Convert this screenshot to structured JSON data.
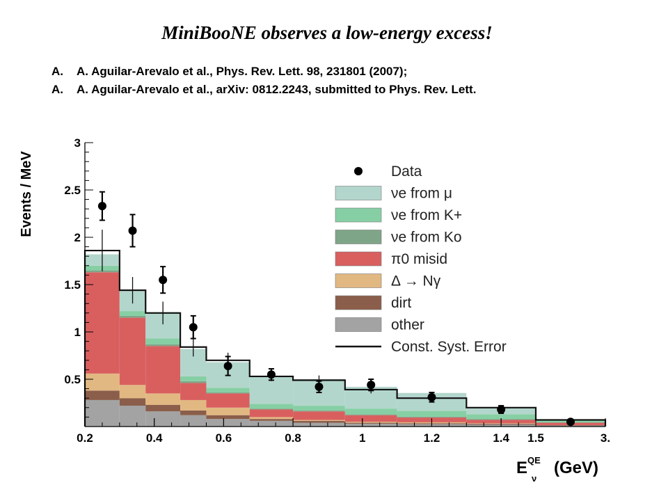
{
  "header": {
    "title": "MiniBooNE observes a low-energy excess!",
    "references": [
      {
        "label": "A.",
        "text": "A. Aguilar-Arevalo et al., Phys. Rev. Lett. 98, 231801 (2007);"
      },
      {
        "label": "A.",
        "text": "A. Aguilar-Arevalo et al., arXiv: 0812.2243, submitted to Phys. Rev. Lett."
      }
    ]
  },
  "chart_data": {
    "type": "area",
    "title": "",
    "ylabel": "Events / MeV",
    "xlabel_main": "E",
    "xlabel_sup": "QE",
    "xlabel_sub": "ν",
    "xlabel_unit": "(GeV)",
    "ylim": [
      0,
      3
    ],
    "yticks": [
      "0.5",
      "1",
      "1.5",
      "2",
      "2.5",
      "3"
    ],
    "ytick_values": [
      0.5,
      1,
      1.5,
      2,
      2.5,
      3
    ],
    "xticks": [
      "0.2",
      "0.4",
      "0.6",
      "0.8",
      "1",
      "1.2",
      "1.4",
      "1.5",
      "3."
    ],
    "xtick_values": [
      0.2,
      0.4,
      0.6,
      0.8,
      1.0,
      1.2,
      1.4,
      1.5,
      3.0
    ],
    "bin_edges": [
      0.2,
      0.3,
      0.375,
      0.475,
      0.55,
      0.675,
      0.8,
      0.95,
      1.1,
      1.3,
      1.5,
      3.0
    ],
    "stacked_series": [
      {
        "name": "other",
        "color": "#a3a3a3",
        "values": [
          0.28,
          0.22,
          0.16,
          0.12,
          0.08,
          0.06,
          0.04,
          0.03,
          0.025,
          0.02,
          0.01
        ]
      },
      {
        "name": "dirt",
        "color": "#8a5e4a",
        "values": [
          0.1,
          0.08,
          0.07,
          0.05,
          0.04,
          0.02,
          0.02,
          0.01,
          0.01,
          0.01,
          0.005
        ]
      },
      {
        "name": "Δ → Nγ",
        "color": "#e2b882",
        "values": [
          0.18,
          0.14,
          0.12,
          0.11,
          0.08,
          0.02,
          0.01,
          0.01,
          0.01,
          0.005,
          0.0
        ]
      },
      {
        "name": "π⁰ misid",
        "color": "#d95f5f",
        "values": [
          1.07,
          0.71,
          0.5,
          0.18,
          0.15,
          0.08,
          0.09,
          0.07,
          0.05,
          0.035,
          0.025
        ]
      },
      {
        "name": "νe from K0",
        "color": "#7fa588",
        "values": [
          0.02,
          0.02,
          0.02,
          0.02,
          0.01,
          0.01,
          0.01,
          0.01,
          0.01,
          0.01,
          0.005
        ]
      },
      {
        "name": "νe from K+",
        "color": "#86cfa4",
        "values": [
          0.05,
          0.05,
          0.06,
          0.05,
          0.05,
          0.05,
          0.05,
          0.06,
          0.06,
          0.05,
          0.02
        ]
      },
      {
        "name": "νe from μ",
        "color": "#b3d6cc",
        "values": [
          0.12,
          0.21,
          0.28,
          0.29,
          0.27,
          0.29,
          0.28,
          0.23,
          0.19,
          0.07,
          0.005
        ]
      }
    ],
    "const_syst_error": {
      "name": "Const. Syst. Error",
      "total_values": [
        1.86,
        1.44,
        1.2,
        0.84,
        0.7,
        0.53,
        0.49,
        0.39,
        0.3,
        0.2,
        0.07
      ],
      "err_up": [
        0.22,
        0.14,
        0.12,
        0.1,
        0.08,
        0.05,
        0.05,
        0.04,
        0.03,
        0.02,
        0.01
      ],
      "err_dn": [
        0.22,
        0.14,
        0.12,
        0.1,
        0.08,
        0.05,
        0.05,
        0.04,
        0.03,
        0.02,
        0.01
      ]
    },
    "data_points": {
      "name": "Data",
      "x": [
        0.25,
        0.3375,
        0.425,
        0.5125,
        0.6125,
        0.7375,
        0.875,
        1.025,
        1.2,
        1.4,
        2.25
      ],
      "y": [
        2.33,
        2.07,
        1.55,
        1.05,
        0.64,
        0.55,
        0.42,
        0.44,
        0.31,
        0.18,
        0.05
      ],
      "err": [
        0.15,
        0.17,
        0.14,
        0.12,
        0.1,
        0.06,
        0.06,
        0.06,
        0.05,
        0.04,
        0.01
      ]
    },
    "legend": {
      "placement": "top-right",
      "entries": [
        {
          "kind": "marker",
          "label": "Data"
        },
        {
          "kind": "box",
          "color": "#b3d6cc",
          "label": "νe from μ"
        },
        {
          "kind": "box",
          "color": "#86cfa4",
          "label": "νe from K+"
        },
        {
          "kind": "box",
          "color": "#7fa588",
          "label": "νe from Ko"
        },
        {
          "kind": "box",
          "color": "#d95f5f",
          "label": "π0 misid"
        },
        {
          "kind": "box",
          "color": "#e2b882",
          "label": "Δ → Nγ"
        },
        {
          "kind": "box",
          "color": "#8a5e4a",
          "label": "dirt"
        },
        {
          "kind": "box",
          "color": "#a3a3a3",
          "label": "other"
        },
        {
          "kind": "line",
          "label": "Const. Syst. Error"
        }
      ]
    }
  }
}
